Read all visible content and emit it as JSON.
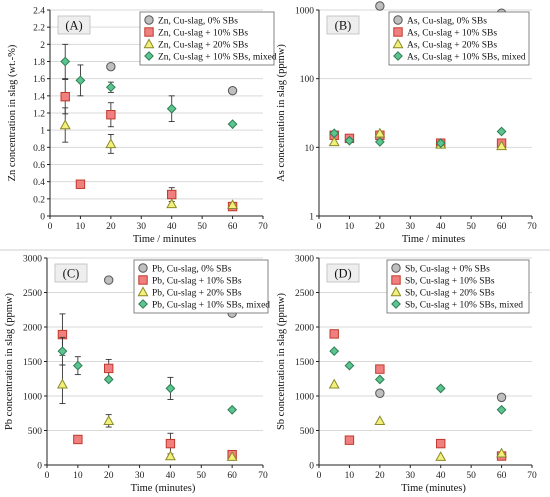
{
  "colors": {
    "s0": "#bfbfbf",
    "s10": "#f08080",
    "s20": "#f2f07a",
    "mixed": "#5cc48e",
    "marker_stroke": "#555555",
    "axis": "#222222",
    "grid": "#d9d9d9"
  },
  "chart_data": [
    {
      "panel": "(A)",
      "type": "scatter",
      "xlabel": "Time / minutes",
      "ylabel": "Zn concentration in slag (wt.-%)",
      "xlim": [
        0,
        70
      ],
      "ylim": [
        0,
        2.4
      ],
      "xscale": "linear",
      "yscale": "linear",
      "xticks": [
        0,
        10,
        20,
        30,
        40,
        50,
        60,
        70
      ],
      "yticks": [
        0,
        0.2,
        0.4,
        0.6,
        0.8,
        1,
        1.2,
        1.4,
        1.6,
        1.8,
        2,
        2.2,
        2.4
      ],
      "ytick_labels": [
        "0",
        "0.2",
        "0.4",
        "0.6",
        "0.8",
        "1",
        "1.2",
        "1.4",
        "1.6",
        "1.8",
        "2",
        "2.2",
        "2.4"
      ],
      "grid": "horizontal",
      "legend_position": "top-right",
      "series": [
        {
          "name": "Zn, Cu-slag, 0% SBs",
          "marker": "circle",
          "color_key": "s0",
          "points": [
            {
              "x": 20,
              "y": 1.74
            },
            {
              "x": 60,
              "y": 1.46
            }
          ]
        },
        {
          "name": "Zn, Cu-slag + 10% SBs",
          "marker": "square",
          "color_key": "s10",
          "points": [
            {
              "x": 5,
              "y": 1.39,
              "err": 0.2
            },
            {
              "x": 10,
              "y": 0.37
            },
            {
              "x": 20,
              "y": 1.18,
              "err": 0.14
            },
            {
              "x": 40,
              "y": 0.25,
              "err": 0.08
            },
            {
              "x": 60,
              "y": 0.11
            }
          ]
        },
        {
          "name": "Zn, Cu-slag + 20% SBs",
          "marker": "triangle",
          "color_key": "s20",
          "points": [
            {
              "x": 5,
              "y": 1.06,
              "err": 0.2
            },
            {
              "x": 20,
              "y": 0.84,
              "err": 0.11
            },
            {
              "x": 40,
              "y": 0.14
            },
            {
              "x": 60,
              "y": 0.13
            }
          ]
        },
        {
          "name": "Zn, Cu-slag + 10% SBs, mixed",
          "marker": "diamond",
          "color_key": "mixed",
          "points": [
            {
              "x": 5,
              "y": 1.8,
              "err": 0.2
            },
            {
              "x": 10,
              "y": 1.58,
              "err": 0.18
            },
            {
              "x": 20,
              "y": 1.5,
              "err": 0.06
            },
            {
              "x": 40,
              "y": 1.25,
              "err": 0.15
            },
            {
              "x": 60,
              "y": 1.07
            }
          ]
        }
      ]
    },
    {
      "panel": "(B)",
      "type": "scatter",
      "xlabel": "Time / minutes",
      "ylabel": "As concentration in slag (ppmw)",
      "xlim": [
        0,
        70
      ],
      "ylim": [
        1,
        1000
      ],
      "xscale": "linear",
      "yscale": "log",
      "xticks": [
        0,
        10,
        20,
        30,
        40,
        50,
        60,
        70
      ],
      "yticks": [
        1,
        10,
        100,
        1000
      ],
      "ytick_labels": [
        "1",
        "10",
        "100",
        "1000"
      ],
      "grid": "horizontal",
      "legend_position": "top-right",
      "series": [
        {
          "name": "As, Cu-slag, 0% SBs",
          "marker": "circle",
          "color_key": "s0",
          "points": [
            {
              "x": 20,
              "y": 1200
            },
            {
              "x": 60,
              "y": 900
            }
          ]
        },
        {
          "name": "As, Cu-slag + 10% SBs",
          "marker": "square",
          "color_key": "s10",
          "points": [
            {
              "x": 5,
              "y": 15
            },
            {
              "x": 10,
              "y": 13.5
            },
            {
              "x": 20,
              "y": 15
            },
            {
              "x": 40,
              "y": 11.5
            },
            {
              "x": 60,
              "y": 11.5
            }
          ]
        },
        {
          "name": "As, Cu-slag + 20% SBs",
          "marker": "triangle",
          "color_key": "s20",
          "points": [
            {
              "x": 5,
              "y": 12
            },
            {
              "x": 20,
              "y": 16
            },
            {
              "x": 40,
              "y": 11
            },
            {
              "x": 60,
              "y": 10.5
            }
          ]
        },
        {
          "name": "As, Cu-slag + 10% SBs, mixed",
          "marker": "diamond",
          "color_key": "mixed",
          "points": [
            {
              "x": 5,
              "y": 16
            },
            {
              "x": 10,
              "y": 12.5
            },
            {
              "x": 20,
              "y": 12
            },
            {
              "x": 40,
              "y": 11.5
            },
            {
              "x": 60,
              "y": 17
            }
          ]
        }
      ]
    },
    {
      "panel": "(C)",
      "type": "scatter",
      "xlabel": "Time (minutes)",
      "ylabel": "Pb concentration in slag (ppmw)",
      "xlim": [
        0,
        70
      ],
      "ylim": [
        0,
        3000
      ],
      "xscale": "linear",
      "yscale": "linear",
      "xticks": [
        0,
        10,
        20,
        30,
        40,
        50,
        60,
        70
      ],
      "yticks": [
        0,
        500,
        1000,
        1500,
        2000,
        2500,
        3000
      ],
      "ytick_labels": [
        "0",
        "500",
        "1000",
        "1500",
        "2000",
        "2500",
        "3000"
      ],
      "grid": "horizontal",
      "legend_position": "top-right",
      "series": [
        {
          "name": "Pb, Cu-slag, 0% SBs",
          "marker": "circle",
          "color_key": "s0",
          "points": [
            {
              "x": 20,
              "y": 2680
            },
            {
              "x": 60,
              "y": 2200
            }
          ]
        },
        {
          "name": "Pb, Cu-slag + 10% SBs",
          "marker": "square",
          "color_key": "s10",
          "points": [
            {
              "x": 5,
              "y": 1890,
              "err": 300
            },
            {
              "x": 10,
              "y": 370
            },
            {
              "x": 20,
              "y": 1400,
              "err": 130
            },
            {
              "x": 40,
              "y": 310,
              "err": 150
            },
            {
              "x": 60,
              "y": 150,
              "err": 60
            }
          ]
        },
        {
          "name": "Pb, Cu-slag + 20% SBs",
          "marker": "triangle",
          "color_key": "s20",
          "points": [
            {
              "x": 5,
              "y": 1170,
              "err": 280
            },
            {
              "x": 20,
              "y": 640,
              "err": 90
            },
            {
              "x": 40,
              "y": 130
            },
            {
              "x": 60,
              "y": 120
            }
          ]
        },
        {
          "name": "Pb, Cu-slag + 10% SBs, mixed",
          "marker": "diamond",
          "color_key": "mixed",
          "points": [
            {
              "x": 5,
              "y": 1650,
              "err": 200
            },
            {
              "x": 10,
              "y": 1440,
              "err": 130
            },
            {
              "x": 20,
              "y": 1240
            },
            {
              "x": 40,
              "y": 1110,
              "err": 160
            },
            {
              "x": 60,
              "y": 800
            }
          ]
        }
      ]
    },
    {
      "panel": "(D)",
      "type": "scatter",
      "xlabel": "Time (minutes)",
      "ylabel": "Sb concentration in slag (ppmw)",
      "xlim": [
        0,
        70
      ],
      "ylim": [
        0,
        3000
      ],
      "xscale": "linear",
      "yscale": "linear",
      "xticks": [
        0,
        10,
        20,
        30,
        40,
        50,
        60,
        70
      ],
      "yticks": [
        0,
        500,
        1000,
        1500,
        2000,
        2500,
        3000
      ],
      "ytick_labels": [
        "0",
        "500",
        "1000",
        "1500",
        "2000",
        "2500",
        "3000"
      ],
      "grid": "horizontal",
      "legend_position": "top-right",
      "series": [
        {
          "name": "Sb, Cu-slag + 0% SBs",
          "marker": "circle",
          "color_key": "s0",
          "points": [
            {
              "x": 20,
              "y": 1040
            },
            {
              "x": 60,
              "y": 980
            }
          ]
        },
        {
          "name": "Sb, Cu-slag + 10% SBs",
          "marker": "square",
          "color_key": "s10",
          "points": [
            {
              "x": 5,
              "y": 1900
            },
            {
              "x": 10,
              "y": 360
            },
            {
              "x": 20,
              "y": 1390
            },
            {
              "x": 40,
              "y": 310
            },
            {
              "x": 60,
              "y": 130
            }
          ]
        },
        {
          "name": "Sb, Cu-slag + 20% SBs",
          "marker": "triangle",
          "color_key": "s20",
          "points": [
            {
              "x": 5,
              "y": 1170
            },
            {
              "x": 20,
              "y": 640
            },
            {
              "x": 40,
              "y": 120
            },
            {
              "x": 60,
              "y": 170
            }
          ]
        },
        {
          "name": "Sb, Cu-slag + 10% SBs, mixed",
          "marker": "diamond",
          "color_key": "mixed",
          "points": [
            {
              "x": 5,
              "y": 1650
            },
            {
              "x": 10,
              "y": 1440
            },
            {
              "x": 20,
              "y": 1240
            },
            {
              "x": 40,
              "y": 1110
            },
            {
              "x": 60,
              "y": 800
            }
          ]
        }
      ]
    }
  ]
}
